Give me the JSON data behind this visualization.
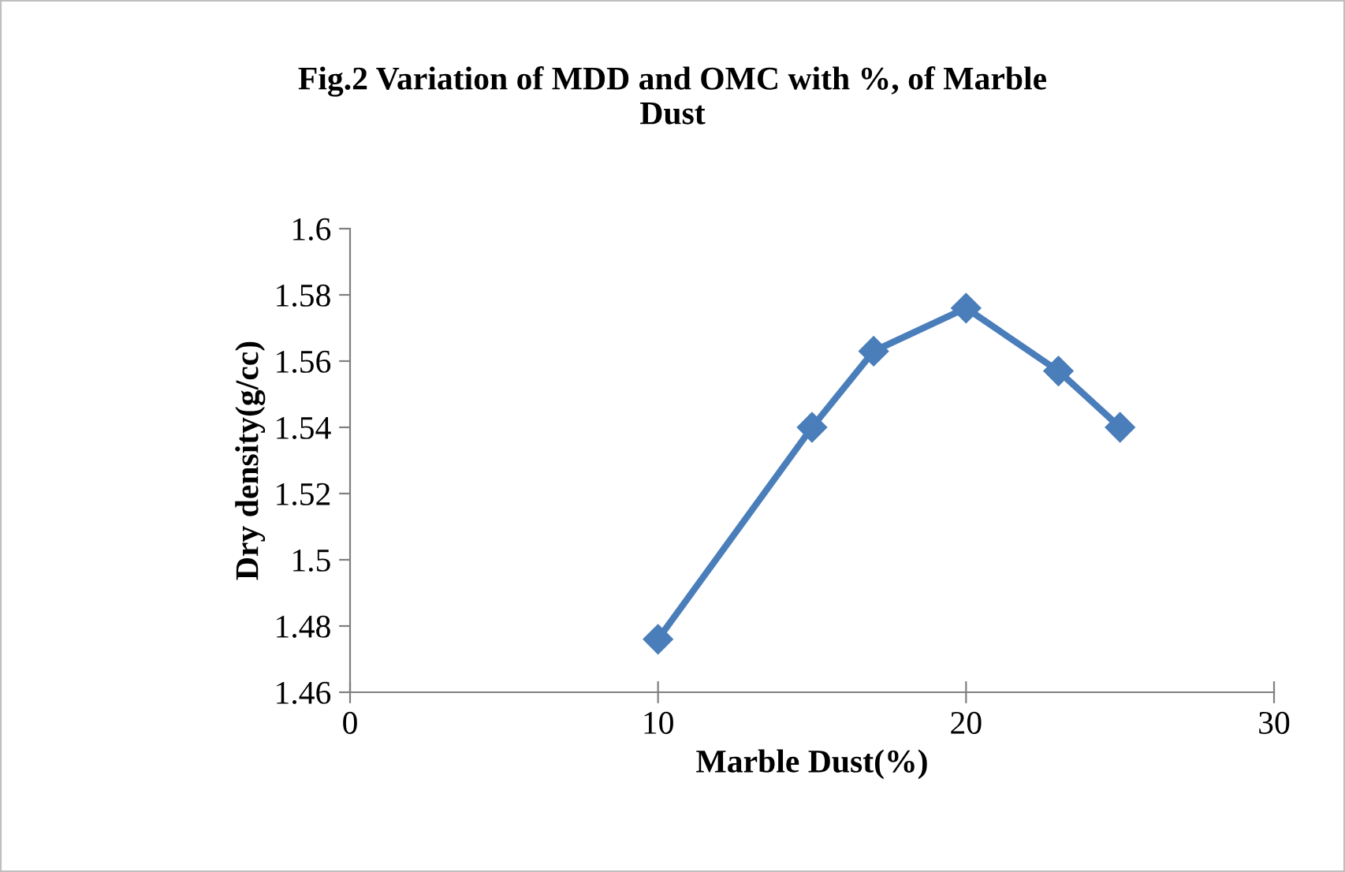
{
  "chart_data": {
    "type": "line",
    "title": "Fig.2 Variation of MDD and OMC with %, of Marble\nDust",
    "xlabel": "Marble Dust(%)",
    "ylabel": "Dry density(g/cc)",
    "x": [
      10,
      15,
      17,
      20,
      23,
      25
    ],
    "series": [
      {
        "color": "#4a7ebb",
        "values": [
          1.476,
          1.54,
          1.563,
          1.576,
          1.557,
          1.54
        ]
      }
    ],
    "xlim": [
      0,
      30
    ],
    "xticks": [
      0,
      10,
      20,
      30
    ],
    "ylim": [
      1.46,
      1.6
    ],
    "yticks": [
      1.46,
      1.48,
      {
        "value": 1.5,
        "label": "1.5"
      },
      1.52,
      1.54,
      1.56,
      1.58,
      {
        "value": 1.6,
        "label": "1.6"
      }
    ],
    "grid": false,
    "marker": "diamond",
    "line_style": "solid",
    "legend": false
  }
}
